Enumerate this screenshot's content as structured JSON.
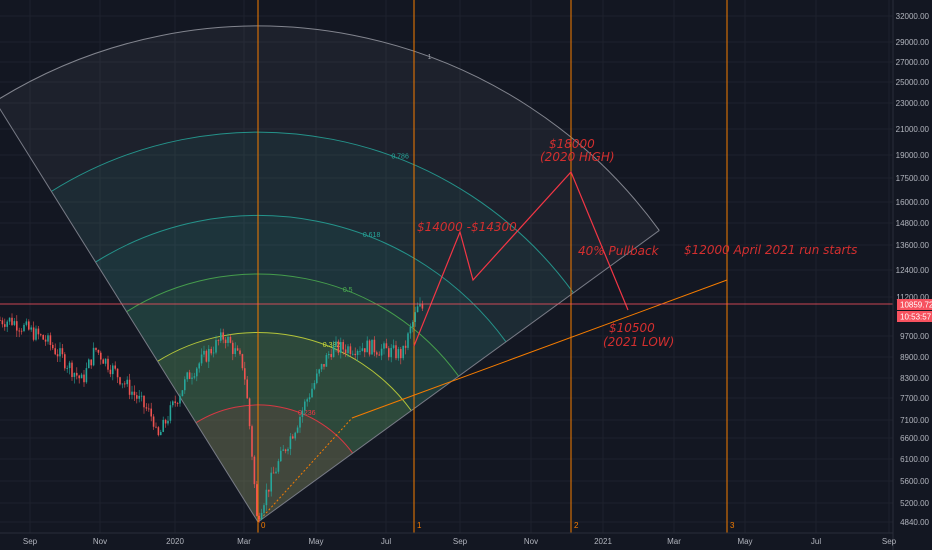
{
  "chart_data": {
    "type": "candlestick",
    "title": "",
    "price_axis": {
      "scale": "log",
      "range": [
        4700,
        34000
      ],
      "ticks": [
        "32000.00",
        "29000.00",
        "27000.00",
        "25000.00",
        "23000.00",
        "21000.00",
        "19000.00",
        "17500.00",
        "16000.00",
        "14800.00",
        "13600.00",
        "12400.00",
        "11200.00",
        "9700.00",
        "8900.00",
        "8300.00",
        "7700.00",
        "7100.00",
        "6600.00",
        "6100.00",
        "5600.00",
        "5200.00",
        "4840.00"
      ]
    },
    "time_axis": {
      "ticks": [
        "Sep",
        "Nov",
        "2020",
        "Mar",
        "May",
        "Jul",
        "Sep",
        "Nov",
        "2021",
        "Mar",
        "May",
        "Jul",
        "Sep"
      ]
    },
    "price_labels": {
      "last_price": "10859.72",
      "countdown": "10:53:57",
      "color": "#f7525f"
    },
    "candles_approx": [
      {
        "date": "2019-08",
        "close": 10500
      },
      {
        "date": "2019-09",
        "close": 9700
      },
      {
        "date": "2019-10",
        "close": 8300
      },
      {
        "date": "2019-10-26",
        "close": 9400
      },
      {
        "date": "2019-11",
        "close": 8500
      },
      {
        "date": "2019-12",
        "close": 7200
      },
      {
        "date": "2019-12-18",
        "close": 6600
      },
      {
        "date": "2020-01",
        "close": 8500
      },
      {
        "date": "2020-02",
        "close": 9900
      },
      {
        "date": "2020-03-01",
        "close": 8800
      },
      {
        "date": "2020-03-12",
        "close": 4900
      },
      {
        "date": "2020-04",
        "close": 7000
      },
      {
        "date": "2020-05",
        "close": 9400
      },
      {
        "date": "2020-06",
        "close": 9500
      },
      {
        "date": "2020-07-15",
        "close": 9200
      },
      {
        "date": "2020-07-28",
        "close": 11000
      }
    ],
    "fib_arcs": {
      "levels": [
        "1",
        "0.786",
        "0.618",
        "0.5",
        "0.382",
        "0.236"
      ],
      "colors": [
        "#9598a1",
        "#26a69a",
        "#26a69a",
        "#4caf50",
        "#cddc39",
        "#f23645"
      ]
    },
    "time_zones": {
      "labels": [
        "0",
        "1",
        "2",
        "3"
      ],
      "color": "#f57c00"
    },
    "projection": {
      "color": "#f23645"
    },
    "support_line": {
      "color": "#f57c00"
    },
    "annotations": {
      "high": "$18000",
      "high_sub": "(2020 HIGH)",
      "range": "$14000 -$14300",
      "pullback": "40%  Pullback",
      "low": "$10500",
      "low_sub": "(2021 LOW)",
      "run": "$12000   April 2021 run starts"
    }
  }
}
